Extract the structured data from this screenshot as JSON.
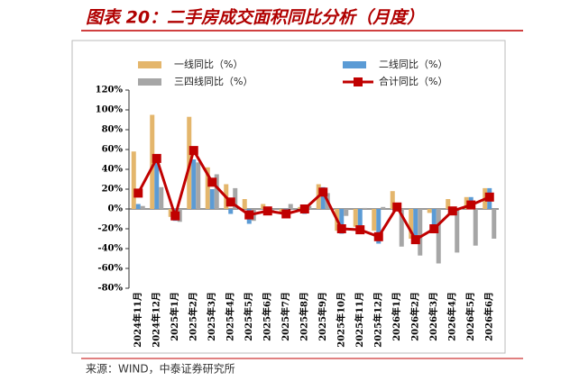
{
  "chart_data": {
    "type": "bar-line",
    "title": "图表 20：二手房成交面积同比分析（月度）",
    "source": "来源：WIND，中泰证券研究所",
    "categories": [
      "2024年11月",
      "2024年12月",
      "2025年1月",
      "2025年2月",
      "2025年3月",
      "2025年4月",
      "2025年5月",
      "2025年6月",
      "2025年7月",
      "2025年8月",
      "2025年9月",
      "2025年10月",
      "2025年11月",
      "2025年12月",
      "2026年1月",
      "2026年2月",
      "2026年3月",
      "2026年4月",
      "2026年5月",
      "2026年6月"
    ],
    "series": [
      {
        "name": "一线同比（%）",
        "type": "bar",
        "color": "#e4b66c",
        "values": [
          58,
          95,
          -8,
          93,
          42,
          25,
          10,
          5,
          -3,
          2,
          25,
          -22,
          -18,
          -22,
          18,
          -30,
          -4,
          10,
          12,
          21
        ]
      },
      {
        "name": "二线同比（%）",
        "type": "bar",
        "color": "#5b9bd5",
        "values": [
          5,
          47,
          -12,
          50,
          20,
          -5,
          -15,
          -6,
          -8,
          -5,
          22,
          -25,
          -22,
          -35,
          2,
          -33,
          -20,
          -5,
          12,
          21
        ]
      },
      {
        "name": "三四线同比（%）",
        "type": "bar",
        "color": "#a6a6a6",
        "values": [
          3,
          22,
          -13,
          47,
          35,
          21,
          -12,
          -3,
          5,
          3,
          16,
          -7,
          1,
          2,
          -38,
          -47,
          -55,
          -44,
          -37,
          -30
        ]
      },
      {
        "name": "合计同比（%）",
        "type": "line",
        "color": "#c00000",
        "values": [
          16,
          51,
          -7,
          59,
          27,
          7,
          -6,
          -2,
          -5,
          0,
          17,
          -20,
          -21,
          -28,
          2,
          -31,
          -20,
          -2,
          4,
          12
        ]
      }
    ],
    "ylim": [
      -80,
      120
    ],
    "yticks": [
      {
        "value": -80,
        "label": "-80%"
      },
      {
        "value": -60,
        "label": "-60%"
      },
      {
        "value": -40,
        "label": "-40%"
      },
      {
        "value": -20,
        "label": "-20%"
      },
      {
        "value": 0,
        "label": "0%"
      },
      {
        "value": 20,
        "label": "20%"
      },
      {
        "value": 40,
        "label": "40%"
      },
      {
        "value": 60,
        "label": "60%"
      },
      {
        "value": 80,
        "label": "80%"
      },
      {
        "value": 100,
        "label": "100%"
      },
      {
        "value": 120,
        "label": "120%"
      }
    ]
  }
}
